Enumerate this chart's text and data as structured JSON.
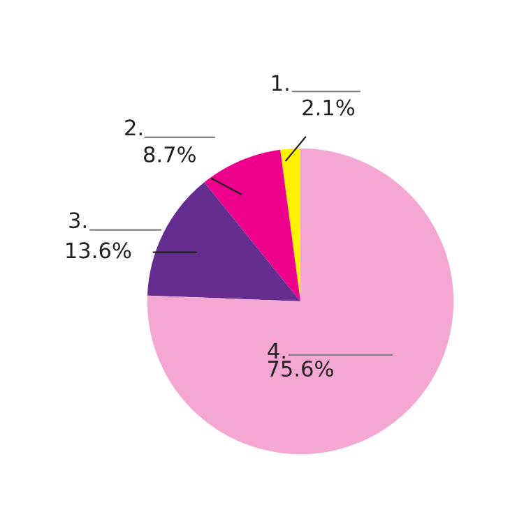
{
  "chart_data": {
    "type": "pie",
    "categories": [
      "1.",
      "2.",
      "3.",
      "4."
    ],
    "values": [
      2.1,
      8.7,
      13.6,
      75.6
    ],
    "colors": [
      "#fff200",
      "#ec008c",
      "#662d91",
      "#f5a7d3"
    ],
    "value_labels": [
      "2.1%",
      "8.7%",
      "13.6%",
      "75.6%"
    ]
  }
}
